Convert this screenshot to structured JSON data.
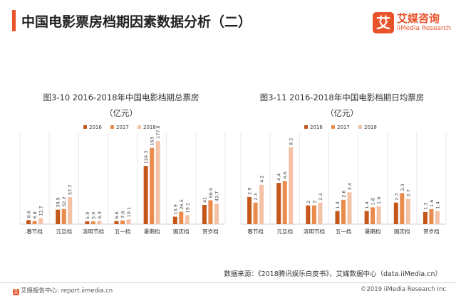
{
  "header": {
    "title": "中国电影票房档期因素数据分析（二）"
  },
  "brand": {
    "logo_char": "艾",
    "name": "艾媒咨询",
    "sub": "iiMedia Research",
    "accent": "#e8532a"
  },
  "legend_names": [
    "2016",
    "2017",
    "2018"
  ],
  "colors": [
    "#c4561a",
    "#e88b4d",
    "#f3c1a5"
  ],
  "chart_data": [
    {
      "type": "bar",
      "title": "图3-10 2016-2018年中国电影档期总票房",
      "unit": "（亿元）",
      "categories": [
        "春节档",
        "元旦档",
        "清明节档",
        "五一档",
        "暑期档",
        "国庆档",
        "贺岁档"
      ],
      "series": [
        {
          "name": "2016",
          "values": [
            8.6,
            30.9,
            5.9,
            6.6,
            124.3,
            15.9,
            41.0
          ]
        },
        {
          "name": "2017",
          "values": [
            6.8,
            32.2,
            5.9,
            7.8,
            163.0,
            26.5,
            50.9
          ]
        },
        {
          "name": "2018",
          "values": [
            12.7,
            57.7,
            6.9,
            10.1,
            177.8,
            19.1,
            43.7
          ]
        }
      ],
      "ylim": [
        0,
        190
      ],
      "legend": "top"
    },
    {
      "type": "bar",
      "title": "图3-11 2016-2018年中国电影档期日均票房",
      "unit": "（亿元）",
      "categories": [
        "春节档",
        "元旦档",
        "清明节档",
        "五一档",
        "暑期档",
        "国庆档",
        "贺岁档"
      ],
      "series": [
        {
          "name": "2016",
          "values": [
            2.9,
            4.4,
            2.0,
            1.4,
            1.4,
            2.3,
            1.3
          ]
        },
        {
          "name": "2017",
          "values": [
            2.3,
            4.6,
            2.0,
            2.6,
            1.8,
            3.3,
            1.6
          ]
        },
        {
          "name": "2018",
          "values": [
            4.2,
            8.2,
            2.3,
            3.4,
            1.9,
            2.7,
            1.4
          ]
        }
      ],
      "ylim": [
        0,
        9.5
      ],
      "legend": "top"
    }
  ],
  "source": "数据来源：《2018腾讯娱乐白皮书》，艾媒数据中心（data.iiMedia.cn）",
  "footer": {
    "icon": "艾",
    "left": "艾媒报告中心: report.iimedia.cn",
    "right": "©2019  iiMedia Research Inc"
  }
}
